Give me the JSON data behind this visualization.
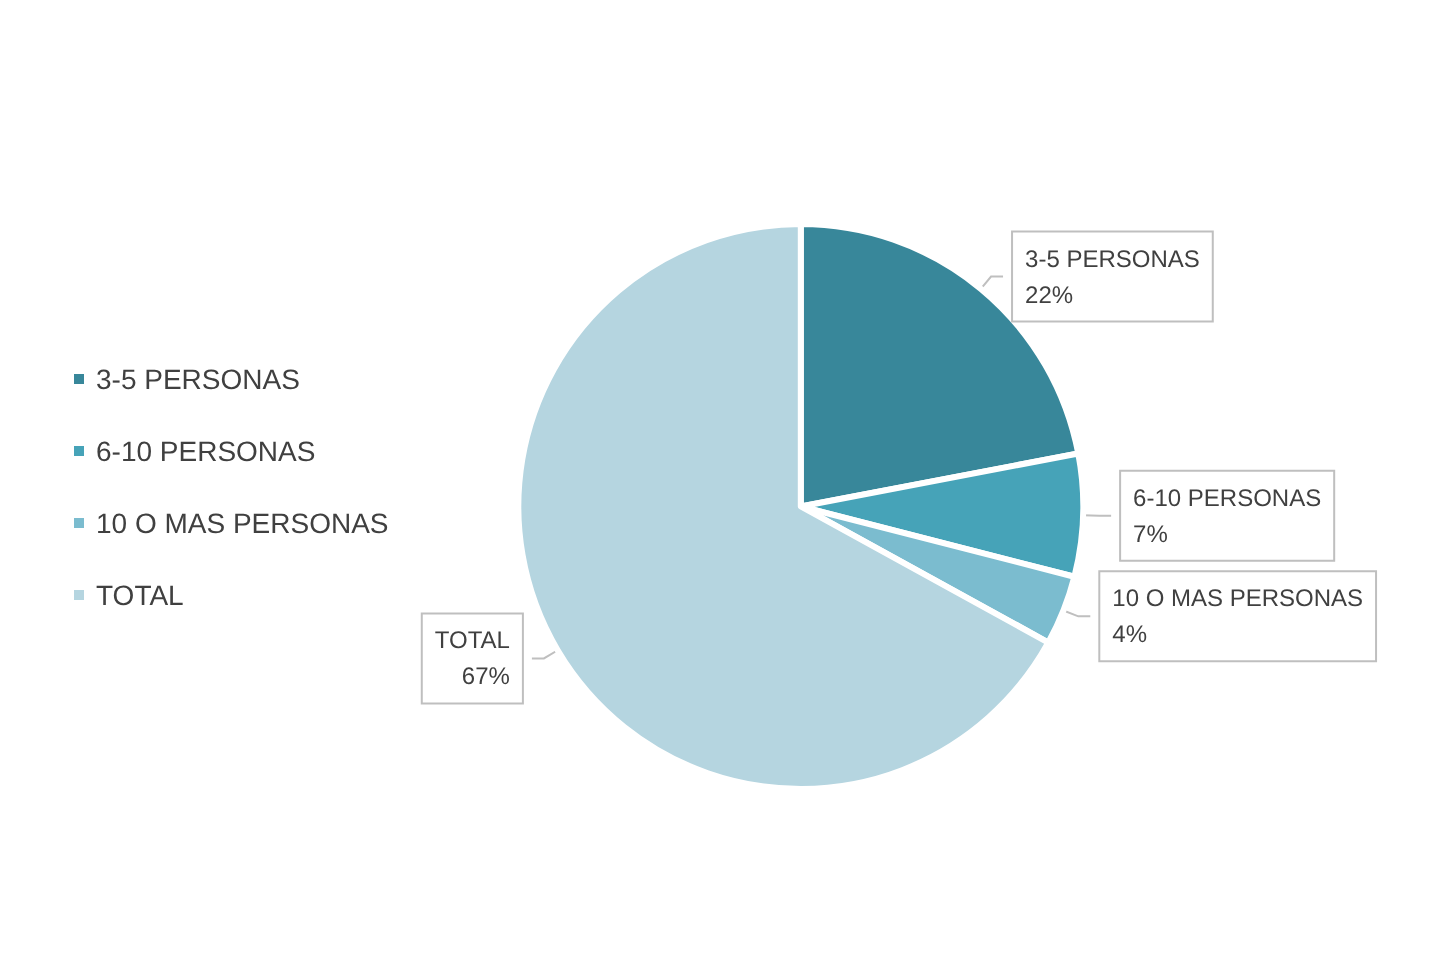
{
  "chart_data": {
    "type": "pie",
    "categories": [
      "3-5 PERSONAS",
      "6-10 PERSONAS",
      "10 O MAS PERSONAS",
      "TOTAL"
    ],
    "values": [
      22,
      7,
      4,
      67
    ],
    "colors": [
      "#38879a",
      "#46a3b8",
      "#7bbccf",
      "#b5d5e0"
    ],
    "value_labels": [
      "22%",
      "7%",
      "4%",
      "67%"
    ],
    "legend": "left"
  }
}
